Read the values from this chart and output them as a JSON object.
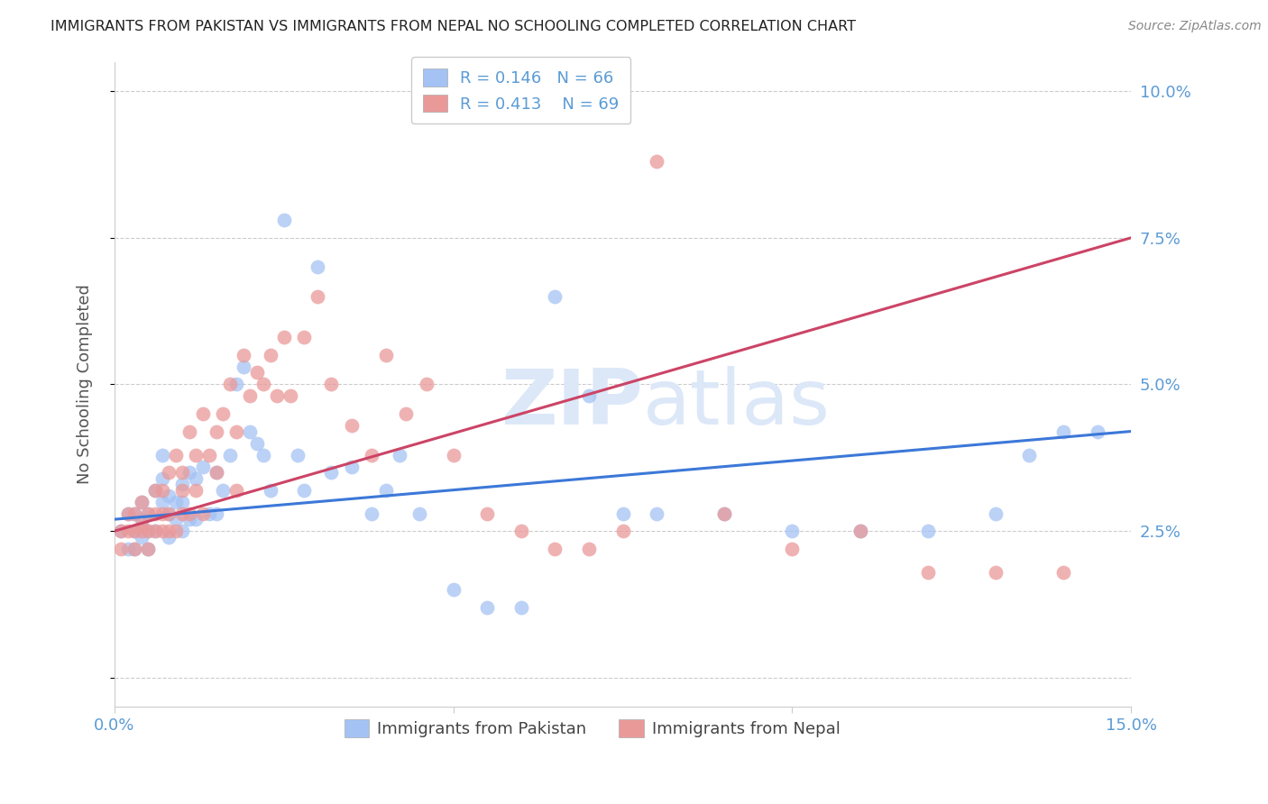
{
  "title": "IMMIGRANTS FROM PAKISTAN VS IMMIGRANTS FROM NEPAL NO SCHOOLING COMPLETED CORRELATION CHART",
  "source": "Source: ZipAtlas.com",
  "ylabel": "No Schooling Completed",
  "xlim": [
    0.0,
    0.15
  ],
  "ylim": [
    -0.005,
    0.105
  ],
  "pakistan_R": 0.146,
  "pakistan_N": 66,
  "nepal_R": 0.413,
  "nepal_N": 69,
  "pakistan_color": "#a4c2f4",
  "nepal_color": "#ea9999",
  "pakistan_line_color": "#3c78d8",
  "nepal_line_color": "#cc4466",
  "background_color": "#ffffff",
  "grid_color": "#cccccc",
  "watermark_color": "#dce8f8",
  "legend_edge_color": "#cccccc",
  "tick_color": "#5b9bd5",
  "ylabel_color": "#555555",
  "pakistan_x": [
    0.001,
    0.002,
    0.002,
    0.003,
    0.003,
    0.003,
    0.004,
    0.004,
    0.004,
    0.005,
    0.005,
    0.005,
    0.006,
    0.006,
    0.007,
    0.007,
    0.007,
    0.008,
    0.008,
    0.008,
    0.009,
    0.009,
    0.01,
    0.01,
    0.01,
    0.011,
    0.011,
    0.012,
    0.012,
    0.013,
    0.014,
    0.015,
    0.015,
    0.016,
    0.017,
    0.018,
    0.019,
    0.02,
    0.021,
    0.022,
    0.023,
    0.025,
    0.027,
    0.028,
    0.03,
    0.032,
    0.035,
    0.038,
    0.04,
    0.042,
    0.045,
    0.05,
    0.055,
    0.06,
    0.065,
    0.07,
    0.075,
    0.08,
    0.09,
    0.1,
    0.11,
    0.12,
    0.13,
    0.135,
    0.14,
    0.145
  ],
  "pakistan_y": [
    0.025,
    0.028,
    0.022,
    0.028,
    0.025,
    0.022,
    0.027,
    0.03,
    0.024,
    0.025,
    0.028,
    0.022,
    0.032,
    0.025,
    0.03,
    0.034,
    0.038,
    0.031,
    0.028,
    0.024,
    0.027,
    0.03,
    0.033,
    0.03,
    0.025,
    0.035,
    0.027,
    0.034,
    0.027,
    0.036,
    0.028,
    0.035,
    0.028,
    0.032,
    0.038,
    0.05,
    0.053,
    0.042,
    0.04,
    0.038,
    0.032,
    0.078,
    0.038,
    0.032,
    0.07,
    0.035,
    0.036,
    0.028,
    0.032,
    0.038,
    0.028,
    0.015,
    0.012,
    0.012,
    0.065,
    0.048,
    0.028,
    0.028,
    0.028,
    0.025,
    0.025,
    0.025,
    0.028,
    0.038,
    0.042,
    0.042
  ],
  "nepal_x": [
    0.001,
    0.001,
    0.002,
    0.002,
    0.003,
    0.003,
    0.003,
    0.004,
    0.004,
    0.004,
    0.005,
    0.005,
    0.005,
    0.006,
    0.006,
    0.006,
    0.007,
    0.007,
    0.007,
    0.008,
    0.008,
    0.008,
    0.009,
    0.009,
    0.01,
    0.01,
    0.01,
    0.011,
    0.011,
    0.012,
    0.012,
    0.013,
    0.013,
    0.014,
    0.015,
    0.015,
    0.016,
    0.017,
    0.018,
    0.018,
    0.019,
    0.02,
    0.021,
    0.022,
    0.023,
    0.024,
    0.025,
    0.026,
    0.028,
    0.03,
    0.032,
    0.035,
    0.038,
    0.04,
    0.043,
    0.046,
    0.05,
    0.055,
    0.06,
    0.065,
    0.07,
    0.075,
    0.08,
    0.09,
    0.1,
    0.11,
    0.12,
    0.13,
    0.14
  ],
  "nepal_y": [
    0.025,
    0.022,
    0.025,
    0.028,
    0.028,
    0.025,
    0.022,
    0.026,
    0.03,
    0.025,
    0.028,
    0.025,
    0.022,
    0.032,
    0.028,
    0.025,
    0.032,
    0.028,
    0.025,
    0.035,
    0.028,
    0.025,
    0.038,
    0.025,
    0.035,
    0.032,
    0.028,
    0.042,
    0.028,
    0.038,
    0.032,
    0.045,
    0.028,
    0.038,
    0.042,
    0.035,
    0.045,
    0.05,
    0.042,
    0.032,
    0.055,
    0.048,
    0.052,
    0.05,
    0.055,
    0.048,
    0.058,
    0.048,
    0.058,
    0.065,
    0.05,
    0.043,
    0.038,
    0.055,
    0.045,
    0.05,
    0.038,
    0.028,
    0.025,
    0.022,
    0.022,
    0.025,
    0.088,
    0.028,
    0.022,
    0.025,
    0.018,
    0.018,
    0.018
  ],
  "pak_line_x0": 0.0,
  "pak_line_y0": 0.027,
  "pak_line_x1": 0.15,
  "pak_line_y1": 0.042,
  "nep_line_x0": 0.0,
  "nep_line_y0": 0.025,
  "nep_line_x1": 0.15,
  "nep_line_y1": 0.075
}
